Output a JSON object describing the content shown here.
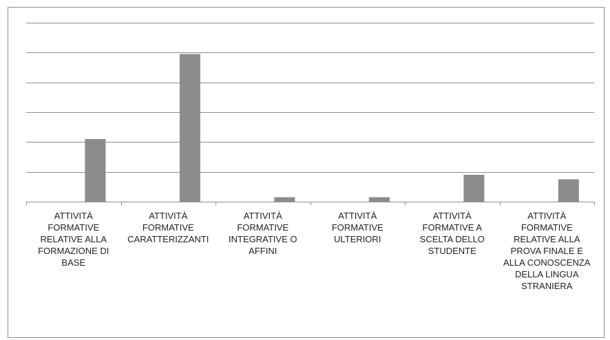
{
  "chart_data": {
    "type": "bar",
    "categories": [
      "ATTIVITÀ FORMATIVE RELATIVE ALLA FORMAZIONE DI BASE",
      "ATTIVITÀ FORMATIVE CARATTERIZZANTI",
      "ATTIVITÀ FORMATIVE INTEGRATIVE O AFFINI",
      "ATTIVITÀ FORMATIVE ULTERIORI",
      "ATTIVITÀ FORMATIVE A SCELTA DELLO STUDENTE",
      "ATTIVITÀ FORMATIVE RELATIVE ALLA PROVA FINALE E ALLA CONOSCENZA DELLA LINGUA STRANIERA"
    ],
    "values": [
      2.1,
      4.95,
      0.15,
      0.15,
      0.9,
      0.75
    ],
    "ylim": [
      0,
      6
    ],
    "y_gridlines": 6,
    "show_y_tick_labels": false,
    "grid": true,
    "legend": "none",
    "colors": {
      "bar": "#8c8c8c",
      "grid": "#8c8c8c",
      "axis": "#8c8c8c"
    }
  }
}
